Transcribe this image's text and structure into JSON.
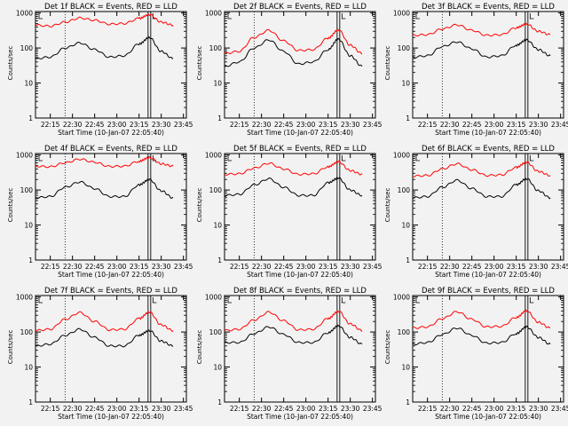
{
  "figure": {
    "background": "#f2f2f2",
    "events_color": "#000000",
    "lld_color": "#ff0000",
    "ylabel": "Counts/sec",
    "xlabel": "Start Time (10-Jan-07 22:05:40)"
  },
  "chart_data": [
    {
      "type": "line",
      "title": "Det 1f BLACK = Events, RED = LLD",
      "xlabel": "Start Time (10-Jan-07 22:05:40)",
      "ylabel": "Counts/sec",
      "yscale": "log",
      "ylim": [
        1,
        1100
      ],
      "x_ticks": [
        "22:15",
        "22:30",
        "22:45",
        "23:00",
        "23:15",
        "23:30",
        "23:45"
      ],
      "y_ticks": [
        "1",
        "10",
        "100",
        "1000"
      ],
      "x": [
        "22:05",
        "22:15",
        "22:25",
        "22:35",
        "22:45",
        "22:55",
        "23:05",
        "23:15",
        "23:22",
        "23:30",
        "23:38"
      ],
      "series": [
        {
          "name": "Events",
          "color": "#000000",
          "values": [
            50,
            55,
            100,
            140,
            90,
            55,
            60,
            130,
            200,
            80,
            50
          ]
        },
        {
          "name": "LLD",
          "color": "#ff0000",
          "values": [
            450,
            420,
            550,
            720,
            620,
            480,
            500,
            700,
            900,
            550,
            450
          ]
        }
      ]
    },
    {
      "type": "line",
      "title": "Det 2f BLACK = Events, RED = LLD",
      "xlabel": "Start Time (10-Jan-07 22:05:40)",
      "ylabel": "Counts/sec",
      "yscale": "log",
      "ylim": [
        1,
        1100
      ],
      "x_ticks": [
        "22:15",
        "22:30",
        "22:45",
        "23:00",
        "23:15",
        "23:30",
        "23:45"
      ],
      "y_ticks": [
        "1",
        "10",
        "100",
        "1000"
      ],
      "x": [
        "22:05",
        "22:15",
        "22:25",
        "22:35",
        "22:45",
        "22:55",
        "23:05",
        "23:15",
        "23:22",
        "23:30",
        "23:38"
      ],
      "series": [
        {
          "name": "Events",
          "color": "#000000",
          "values": [
            30,
            40,
            100,
            170,
            80,
            35,
            40,
            90,
            180,
            60,
            30
          ]
        },
        {
          "name": "LLD",
          "color": "#ff0000",
          "values": [
            70,
            80,
            200,
            320,
            160,
            85,
            90,
            190,
            330,
            120,
            70
          ]
        }
      ]
    },
    {
      "type": "line",
      "title": "Det 3f BLACK = Events, RED = LLD",
      "xlabel": "Start Time (10-Jan-07 22:05:40)",
      "ylabel": "Counts/sec",
      "yscale": "log",
      "ylim": [
        1,
        1100
      ],
      "x_ticks": [
        "22:15",
        "22:30",
        "22:45",
        "23:00",
        "23:15",
        "23:30",
        "23:45"
      ],
      "y_ticks": [
        "1",
        "10",
        "100",
        "1000"
      ],
      "x": [
        "22:05",
        "22:15",
        "22:25",
        "22:35",
        "22:45",
        "22:55",
        "23:05",
        "23:15",
        "23:22",
        "23:30",
        "23:38"
      ],
      "series": [
        {
          "name": "Events",
          "color": "#000000",
          "values": [
            55,
            60,
            110,
            150,
            95,
            55,
            60,
            120,
            170,
            90,
            60
          ]
        },
        {
          "name": "LLD",
          "color": "#ff0000",
          "values": [
            230,
            240,
            350,
            460,
            320,
            230,
            240,
            380,
            480,
            300,
            240
          ]
        }
      ]
    },
    {
      "type": "line",
      "title": "Det 4f BLACK = Events, RED = LLD",
      "xlabel": "Start Time (10-Jan-07 22:05:40)",
      "ylabel": "Counts/sec",
      "yscale": "log",
      "ylim": [
        1,
        1100
      ],
      "x_ticks": [
        "22:15",
        "22:30",
        "22:45",
        "23:00",
        "23:15",
        "23:30",
        "23:45"
      ],
      "y_ticks": [
        "1",
        "10",
        "100",
        "1000"
      ],
      "x": [
        "22:05",
        "22:15",
        "22:25",
        "22:35",
        "22:45",
        "22:55",
        "23:05",
        "23:15",
        "23:22",
        "23:30",
        "23:38"
      ],
      "series": [
        {
          "name": "Events",
          "color": "#000000",
          "values": [
            60,
            65,
            120,
            170,
            110,
            65,
            65,
            140,
            200,
            95,
            60
          ]
        },
        {
          "name": "LLD",
          "color": "#ff0000",
          "values": [
            480,
            460,
            600,
            760,
            620,
            470,
            480,
            660,
            850,
            560,
            480
          ]
        }
      ]
    },
    {
      "type": "line",
      "title": "Det 5f BLACK = Events, RED = LLD",
      "xlabel": "Start Time (10-Jan-07 22:05:40)",
      "ylabel": "Counts/sec",
      "yscale": "log",
      "ylim": [
        1,
        1100
      ],
      "x_ticks": [
        "22:15",
        "22:30",
        "22:45",
        "23:00",
        "23:15",
        "23:30",
        "23:45"
      ],
      "y_ticks": [
        "1",
        "10",
        "100",
        "1000"
      ],
      "x": [
        "22:05",
        "22:15",
        "22:25",
        "22:35",
        "22:45",
        "22:55",
        "23:05",
        "23:15",
        "23:22",
        "23:30",
        "23:38"
      ],
      "series": [
        {
          "name": "Events",
          "color": "#000000",
          "values": [
            70,
            75,
            140,
            210,
            120,
            70,
            70,
            160,
            220,
            100,
            70
          ]
        },
        {
          "name": "LLD",
          "color": "#ff0000",
          "values": [
            280,
            290,
            420,
            580,
            400,
            280,
            290,
            460,
            640,
            360,
            280
          ]
        }
      ]
    },
    {
      "type": "line",
      "title": "Det 6f BLACK = Events, RED = LLD",
      "xlabel": "Start Time (10-Jan-07 22:05:40)",
      "ylabel": "Counts/sec",
      "yscale": "log",
      "ylim": [
        1,
        1100
      ],
      "x_ticks": [
        "22:15",
        "22:30",
        "22:45",
        "23:00",
        "23:15",
        "23:30",
        "23:45"
      ],
      "y_ticks": [
        "1",
        "10",
        "100",
        "1000"
      ],
      "x": [
        "22:05",
        "22:15",
        "22:25",
        "22:35",
        "22:45",
        "22:55",
        "23:05",
        "23:15",
        "23:22",
        "23:30",
        "23:38"
      ],
      "series": [
        {
          "name": "Events",
          "color": "#000000",
          "values": [
            60,
            65,
            120,
            190,
            110,
            65,
            65,
            140,
            210,
            95,
            60
          ]
        },
        {
          "name": "LLD",
          "color": "#ff0000",
          "values": [
            250,
            260,
            400,
            560,
            380,
            260,
            270,
            440,
            620,
            340,
            260
          ]
        }
      ]
    },
    {
      "type": "line",
      "title": "Det 7f BLACK = Events, RED = LLD",
      "xlabel": "Start Time (10-Jan-07 22:05:40)",
      "ylabel": "Counts/sec",
      "yscale": "log",
      "ylim": [
        1,
        1100
      ],
      "x_ticks": [
        "22:15",
        "22:30",
        "22:45",
        "23:00",
        "23:15",
        "23:30",
        "23:45"
      ],
      "y_ticks": [
        "1",
        "10",
        "100",
        "1000"
      ],
      "x": [
        "22:05",
        "22:15",
        "22:25",
        "22:35",
        "22:45",
        "22:55",
        "23:05",
        "23:15",
        "23:22",
        "23:30",
        "23:38"
      ],
      "series": [
        {
          "name": "Events",
          "color": "#000000",
          "values": [
            40,
            45,
            80,
            120,
            70,
            40,
            40,
            80,
            110,
            55,
            40
          ]
        },
        {
          "name": "LLD",
          "color": "#ff0000",
          "values": [
            110,
            120,
            230,
            360,
            200,
            115,
            120,
            240,
            370,
            160,
            110
          ]
        }
      ]
    },
    {
      "type": "line",
      "title": "Det 8f BLACK = Events, RED = LLD",
      "xlabel": "Start Time (10-Jan-07 22:05:40)",
      "ylabel": "Counts/sec",
      "yscale": "log",
      "ylim": [
        1,
        1100
      ],
      "x_ticks": [
        "22:15",
        "22:30",
        "22:45",
        "23:00",
        "23:15",
        "23:30",
        "23:45"
      ],
      "y_ticks": [
        "1",
        "10",
        "100",
        "1000"
      ],
      "x": [
        "22:05",
        "22:15",
        "22:25",
        "22:35",
        "22:45",
        "22:55",
        "23:05",
        "23:15",
        "23:22",
        "23:30",
        "23:38"
      ],
      "series": [
        {
          "name": "Events",
          "color": "#000000",
          "values": [
            50,
            50,
            90,
            140,
            85,
            50,
            50,
            95,
            150,
            70,
            45
          ]
        },
        {
          "name": "LLD",
          "color": "#ff0000",
          "values": [
            110,
            120,
            220,
            370,
            210,
            115,
            120,
            240,
            390,
            170,
            110
          ]
        }
      ]
    },
    {
      "type": "line",
      "title": "Det 9f BLACK = Events, RED = LLD",
      "xlabel": "Start Time (10-Jan-07 22:05:40)",
      "ylabel": "Counts/sec",
      "yscale": "log",
      "ylim": [
        1,
        1100
      ],
      "x_ticks": [
        "22:15",
        "22:30",
        "22:45",
        "23:00",
        "23:15",
        "23:30",
        "23:45"
      ],
      "y_ticks": [
        "1",
        "10",
        "100",
        "1000"
      ],
      "x": [
        "22:05",
        "22:15",
        "22:25",
        "22:35",
        "22:45",
        "22:55",
        "23:05",
        "23:15",
        "23:22",
        "23:30",
        "23:38"
      ],
      "series": [
        {
          "name": "Events",
          "color": "#000000",
          "values": [
            45,
            50,
            85,
            130,
            80,
            48,
            50,
            90,
            140,
            70,
            45
          ]
        },
        {
          "name": "LLD",
          "color": "#ff0000",
          "values": [
            130,
            140,
            240,
            380,
            230,
            140,
            145,
            260,
            400,
            190,
            130
          ]
        }
      ]
    }
  ]
}
